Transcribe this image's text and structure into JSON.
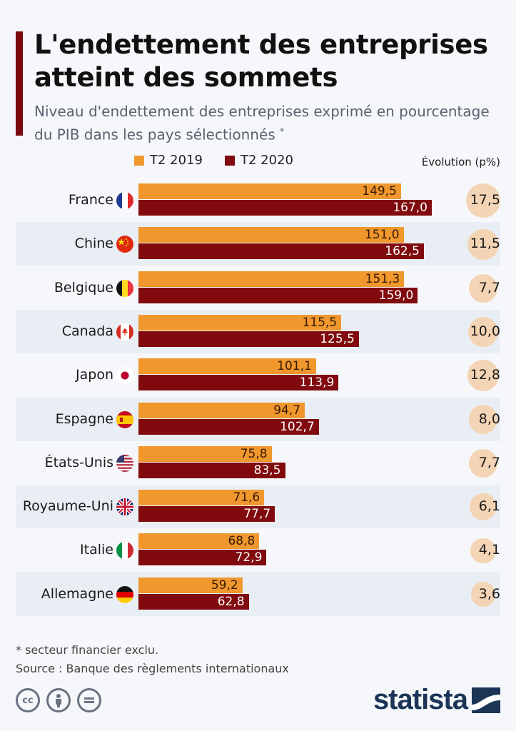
{
  "header": {
    "title": "L'endettement des entreprises atteint des sommets",
    "subtitle": "Niveau d'endettement des entreprises exprimé en pourcentage du PIB dans les pays sélectionnés",
    "subtitle_mark": "*"
  },
  "legend": {
    "series_2019": "T2 2019",
    "series_2020": "T2 2020"
  },
  "evolution_header": "Évolution (p%)",
  "footer": {
    "note": "* secteur financier exclu.",
    "source": "Source : Banque des règlements internationaux",
    "logo_text": "statista"
  },
  "colors": {
    "t2_2019": "#f0972e",
    "t2_2020": "#800a0d",
    "bubble": "#f3d4b4",
    "accent": "#7a0a0f"
  },
  "icons": [
    "cc-license-icon",
    "attribution-icon",
    "no-derivatives-icon",
    "statista-logo-icon"
  ],
  "chart_data": {
    "type": "bar",
    "orientation": "horizontal",
    "categories": [
      "France",
      "Chine",
      "Belgique",
      "Canada",
      "Japon",
      "Espagne",
      "États-Unis",
      "Royaume-Uni",
      "Italie",
      "Allemagne"
    ],
    "series": [
      {
        "name": "T2 2019",
        "values": [
          149.5,
          151.0,
          151.3,
          115.5,
          101.1,
          94.7,
          75.8,
          71.6,
          68.8,
          59.2
        ],
        "labels": [
          "149,5",
          "151,0",
          "151,3",
          "115,5",
          "101,1",
          "94,7",
          "75,8",
          "71,6",
          "68,8",
          "59,2"
        ]
      },
      {
        "name": "T2 2020",
        "values": [
          167.0,
          162.5,
          159.0,
          125.5,
          113.9,
          102.7,
          83.5,
          77.7,
          72.9,
          62.8
        ],
        "labels": [
          "167,0",
          "162,5",
          "159,0",
          "125,5",
          "113,9",
          "102,7",
          "83,5",
          "77,7",
          "72,9",
          "62,8"
        ]
      }
    ],
    "evolution": {
      "values": [
        17.5,
        11.5,
        7.7,
        10.0,
        12.8,
        8.0,
        7.7,
        6.1,
        4.1,
        3.6
      ],
      "labels": [
        "17,5",
        "11,5",
        "7,7",
        "10,0",
        "12,8",
        "8,0",
        "7,7",
        "6,1",
        "4,1",
        "3,6"
      ]
    },
    "flags": [
      "flag-france-icon",
      "flag-china-icon",
      "flag-belgium-icon",
      "flag-canada-icon",
      "flag-japan-icon",
      "flag-spain-icon",
      "flag-usa-icon",
      "flag-uk-icon",
      "flag-italy-icon",
      "flag-germany-icon"
    ],
    "xlim": [
      0,
      167.0
    ],
    "legend_position": "top"
  }
}
